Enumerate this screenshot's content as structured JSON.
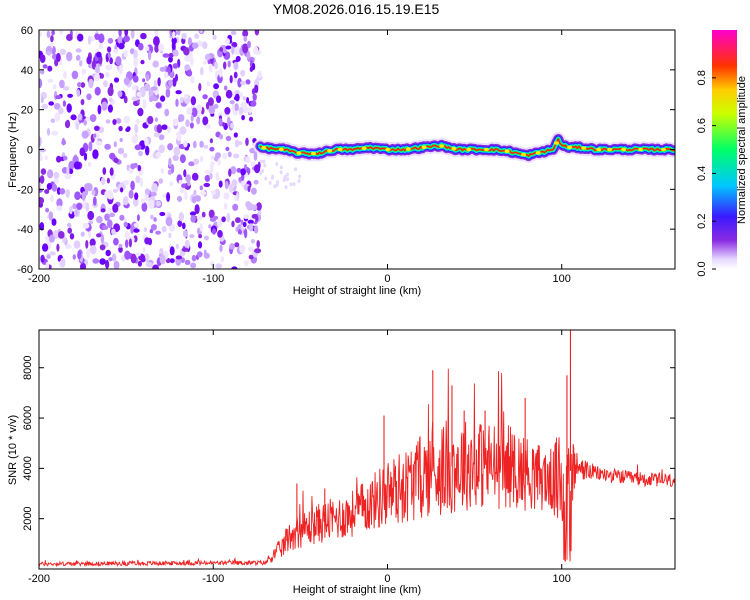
{
  "title": "YM08.2026.016.15.19.E15",
  "chart_data": [
    {
      "type": "heatmap",
      "xlabel": "Height of straight line (km)",
      "ylabel": "Frequency (Hz)",
      "xlim": [
        -200,
        165
      ],
      "ylim": [
        -60,
        60
      ],
      "xticks": [
        "-200",
        "-100",
        "0",
        "100"
      ],
      "xtick_values": [
        -200,
        -100,
        0,
        100
      ],
      "yticks": [
        "-60",
        "-40",
        "-20",
        "0",
        "20",
        "40",
        "60"
      ],
      "ytick_values": [
        -60,
        -40,
        -20,
        0,
        20,
        40,
        60
      ],
      "noise_region_x": [
        -200,
        -73
      ],
      "signal_start_x": -73,
      "signal_track": {
        "x": [
          -73,
          -60,
          -50,
          -40,
          -30,
          -20,
          -10,
          0,
          10,
          20,
          30,
          40,
          50,
          60,
          70,
          80,
          90,
          95,
          98,
          100,
          105,
          110,
          120,
          140,
          165
        ],
        "freq": [
          1,
          0,
          -2,
          -2,
          0,
          0,
          1,
          0,
          0,
          1,
          2,
          0,
          0,
          0,
          -1,
          -3,
          -1,
          0,
          5,
          2,
          1,
          1,
          0,
          0,
          0
        ]
      },
      "colorbar": {
        "label": "Normalized spectral amplitude",
        "range": [
          0,
          1
        ],
        "ticks": [
          "0.0",
          "0.2",
          "0.4",
          "0.6",
          "0.8"
        ],
        "tick_values": [
          0.0,
          0.2,
          0.4,
          0.6,
          0.8
        ],
        "colormap": [
          "#ffffff",
          "#e6d8ff",
          "#7f00ff",
          "#1a1aff",
          "#00c8ff",
          "#00ff66",
          "#ffff00",
          "#ff0000",
          "#ff00cc"
        ]
      }
    },
    {
      "type": "line",
      "xlabel": "Height of straight line (km)",
      "ylabel": "SNR (10 * v/v)",
      "xlim": [
        -200,
        165
      ],
      "ylim": [
        0,
        9500
      ],
      "xticks": [
        "-200",
        "-100",
        "0",
        "100"
      ],
      "xtick_values": [
        -200,
        -100,
        0,
        100
      ],
      "yticks": [
        "2000",
        "4000",
        "6000",
        "8000"
      ],
      "ytick_values": [
        2000,
        4000,
        6000,
        8000
      ],
      "series_color": "#ee2222",
      "envelope": {
        "x": [
          -200,
          -70,
          -60,
          -55,
          -40,
          -20,
          -10,
          0,
          10,
          20,
          30,
          40,
          50,
          60,
          70,
          80,
          90,
          95,
          100,
          105,
          110,
          120,
          140,
          165
        ],
        "base": [
          200,
          250,
          900,
          1400,
          1800,
          2200,
          2600,
          3000,
          3300,
          3700,
          4000,
          4100,
          4200,
          4100,
          4100,
          3800,
          3600,
          3500,
          3400,
          3900,
          4000,
          3800,
          3600,
          3500
        ],
        "amp": [
          80,
          90,
          450,
          650,
          800,
          950,
          1100,
          1400,
          1500,
          1700,
          1900,
          1900,
          1800,
          1800,
          1700,
          1500,
          1300,
          1300,
          2500,
          1600,
          500,
          300,
          280,
          280
        ]
      },
      "spikes": [
        {
          "x": -52,
          "y": 3400
        },
        {
          "x": -36,
          "y": 3200
        },
        {
          "x": -2,
          "y": 6100
        },
        {
          "x": 26,
          "y": 7900
        },
        {
          "x": 37,
          "y": 7300
        },
        {
          "x": 44,
          "y": 6300
        },
        {
          "x": 56,
          "y": 6300
        },
        {
          "x": 79,
          "y": 6800
        },
        {
          "x": 103,
          "y": 7700
        },
        {
          "x": 105,
          "y": 9500
        }
      ]
    }
  ]
}
